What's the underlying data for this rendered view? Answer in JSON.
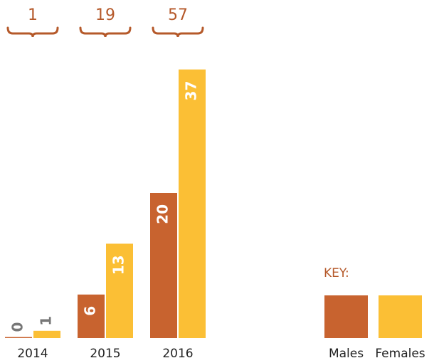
{
  "chart_data": {
    "type": "bar",
    "categories": [
      "2014",
      "2015",
      "2016"
    ],
    "series": [
      {
        "name": "Males",
        "color": "#c8632f",
        "values": [
          0,
          6,
          20
        ]
      },
      {
        "name": "Females",
        "color": "#fbbf35",
        "values": [
          1,
          13,
          37
        ]
      }
    ],
    "totals": [
      1,
      19,
      57
    ],
    "legend_title": "KEY:",
    "legend": "bottom-right"
  }
}
